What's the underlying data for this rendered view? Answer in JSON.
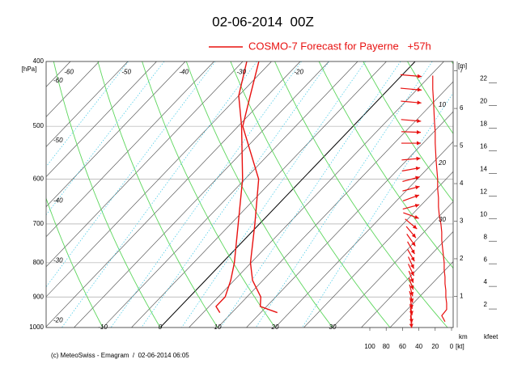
{
  "chart_data": {
    "type": "emagram",
    "title": "02-06-2014  00Z",
    "footer": "(c) MeteoSwiss - Emagram  /  02-06-2014 06:05",
    "y_unit": "[hPa]",
    "height_unit": "[m]",
    "km_label": "km",
    "kfeet_label": "kfeet",
    "wind_unit": "[kt]",
    "log_y": true,
    "ylim": [
      400,
      1000
    ],
    "yticks": [
      400,
      500,
      600,
      700,
      800,
      900,
      1000
    ],
    "xticks": [
      -95,
      -90,
      -85,
      -80,
      -75,
      -70,
      -65,
      -60,
      -55,
      -50,
      -45,
      -40,
      -35,
      -30,
      -25,
      -20,
      -15,
      -10,
      -5,
      0,
      5,
      10,
      15,
      20,
      25,
      30,
      35,
      40
    ],
    "top_labels": [
      -60,
      -50,
      -40,
      -30,
      -20
    ],
    "left_labels": [
      -60,
      -50,
      -40,
      -30,
      -20
    ],
    "bottom_labels": [
      -10,
      0,
      10,
      20,
      30
    ],
    "dry_adiabats": [
      -40,
      -30,
      -20,
      -10,
      0,
      10,
      20,
      30,
      40,
      50,
      60,
      70,
      80,
      90,
      100
    ],
    "mixing_ratios": [
      0.1,
      0.2,
      0.5,
      1,
      2,
      3,
      5,
      8,
      12,
      20
    ],
    "pressure": [
      950,
      930,
      900,
      850,
      800,
      700,
      600,
      500,
      450,
      400
    ],
    "series": [
      {
        "name": "COSMO-7 Forecast for Payerne   +57h",
        "color": "#e8100f",
        "values": [
          17.9,
          13.9,
          12.4,
          8.2,
          4.9,
          -0.8,
          -7.6,
          -19.2,
          -23,
          -27.2
        ]
      },
      {
        "color": "#e8100f",
        "values": [
          7.9,
          6.2,
          6.2,
          4.4,
          2.1,
          -3.7,
          -10.4,
          -19.4,
          -25,
          -29.3
        ]
      }
    ],
    "wind_pressure": [
      420,
      440,
      460,
      490,
      510,
      530,
      560,
      580,
      600,
      620,
      640,
      660,
      680,
      700,
      720,
      740,
      760,
      780,
      800,
      820,
      840,
      860,
      880,
      900,
      920,
      940,
      960,
      980
    ],
    "wind_direction": [
      275,
      275,
      275,
      275,
      272,
      270,
      265,
      260,
      255,
      255,
      250,
      255,
      290,
      310,
      320,
      325,
      330,
      330,
      335,
      335,
      340,
      340,
      345,
      345,
      350,
      350,
      355,
      355
    ],
    "wind_speed": [
      23,
      23,
      22,
      21,
      20,
      20,
      19,
      18,
      17,
      17,
      16,
      16,
      15,
      13,
      12,
      12,
      11,
      10,
      9,
      9,
      8,
      8,
      7,
      7,
      6,
      6,
      12,
      8
    ],
    "wind_color": "#e8100f",
    "windlim": [
      0,
      100
    ],
    "windticks": [
      100,
      80,
      60,
      40,
      20,
      0
    ],
    "speed_labels": [
      10,
      20,
      30
    ],
    "y2lim": [
      0.17,
      7.25
    ],
    "y2ticks": [
      1,
      2,
      3,
      4,
      5,
      6,
      7
    ],
    "y3lim": [
      0.36,
      23.9
    ],
    "y3ticks": [
      2,
      4,
      6,
      8,
      10,
      12,
      14,
      16,
      18,
      20,
      22
    ]
  }
}
